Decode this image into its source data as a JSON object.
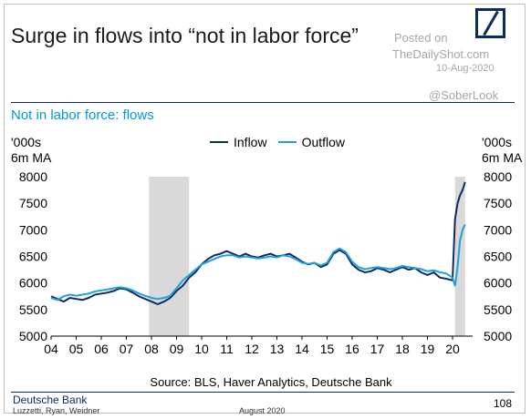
{
  "header": {
    "title": "Surge in flows into “not in labor force”",
    "watermark_line1": "Posted on",
    "watermark_line2": "TheDailyShot.com",
    "watermark_date": "10-Aug-2020",
    "watermark_handle": "@SoberLook"
  },
  "chart_data": {
    "type": "line",
    "title": "Not in labor force: flows",
    "ylabel_left": [
      "'000s",
      "6m MA"
    ],
    "ylabel_right": [
      "'000s",
      "6m MA"
    ],
    "ylim": [
      5000,
      8000
    ],
    "yticks": [
      5000,
      5500,
      6000,
      6500,
      7000,
      7500,
      8000
    ],
    "xlim": [
      2004,
      2020.8
    ],
    "xticks": [
      2004,
      2005,
      2006,
      2007,
      2008,
      2009,
      2010,
      2011,
      2012,
      2013,
      2014,
      2015,
      2016,
      2017,
      2018,
      2019,
      2020
    ],
    "xtick_labels": [
      "04",
      "05",
      "06",
      "07",
      "08",
      "09",
      "10",
      "11",
      "12",
      "13",
      "14",
      "15",
      "16",
      "17",
      "18",
      "19",
      "20"
    ],
    "recessions": [
      [
        2007.9,
        2009.5
      ],
      [
        2020.1,
        2020.5
      ]
    ],
    "grid": false,
    "legend_position": "top-center",
    "series": [
      {
        "name": "Inflow",
        "color": "#0b2b66",
        "x": [
          2004.0,
          2004.25,
          2004.5,
          2004.75,
          2005.0,
          2005.25,
          2005.5,
          2005.75,
          2006.0,
          2006.25,
          2006.5,
          2006.75,
          2007.0,
          2007.25,
          2007.5,
          2007.75,
          2008.0,
          2008.25,
          2008.5,
          2008.75,
          2009.0,
          2009.25,
          2009.5,
          2009.75,
          2010.0,
          2010.25,
          2010.5,
          2010.75,
          2011.0,
          2011.25,
          2011.5,
          2011.75,
          2012.0,
          2012.25,
          2012.5,
          2012.75,
          2013.0,
          2013.25,
          2013.5,
          2013.75,
          2014.0,
          2014.25,
          2014.5,
          2014.75,
          2015.0,
          2015.25,
          2015.5,
          2015.75,
          2016.0,
          2016.25,
          2016.5,
          2016.75,
          2017.0,
          2017.25,
          2017.5,
          2017.75,
          2018.0,
          2018.25,
          2018.5,
          2018.75,
          2019.0,
          2019.25,
          2019.5,
          2019.75,
          2020.0,
          2020.1,
          2020.2,
          2020.3,
          2020.4,
          2020.5
        ],
        "values": [
          5750,
          5700,
          5650,
          5720,
          5700,
          5680,
          5720,
          5780,
          5800,
          5820,
          5850,
          5900,
          5880,
          5820,
          5750,
          5700,
          5650,
          5600,
          5650,
          5720,
          5850,
          5950,
          6100,
          6200,
          6350,
          6450,
          6520,
          6550,
          6600,
          6550,
          6500,
          6550,
          6500,
          6480,
          6520,
          6550,
          6500,
          6520,
          6550,
          6480,
          6400,
          6350,
          6380,
          6300,
          6350,
          6550,
          6620,
          6550,
          6350,
          6250,
          6200,
          6220,
          6280,
          6250,
          6200,
          6250,
          6300,
          6250,
          6280,
          6200,
          6150,
          6200,
          6100,
          6080,
          6050,
          7200,
          7500,
          7650,
          7750,
          7900
        ]
      },
      {
        "name": "Outflow",
        "color": "#1ea0df",
        "x": [
          2004.0,
          2004.25,
          2004.5,
          2004.75,
          2005.0,
          2005.25,
          2005.5,
          2005.75,
          2006.0,
          2006.25,
          2006.5,
          2006.75,
          2007.0,
          2007.25,
          2007.5,
          2007.75,
          2008.0,
          2008.25,
          2008.5,
          2008.75,
          2009.0,
          2009.25,
          2009.5,
          2009.75,
          2010.0,
          2010.25,
          2010.5,
          2010.75,
          2011.0,
          2011.25,
          2011.5,
          2011.75,
          2012.0,
          2012.25,
          2012.5,
          2012.75,
          2013.0,
          2013.25,
          2013.5,
          2013.75,
          2014.0,
          2014.25,
          2014.5,
          2014.75,
          2015.0,
          2015.25,
          2015.5,
          2015.75,
          2016.0,
          2016.25,
          2016.5,
          2016.75,
          2017.0,
          2017.25,
          2017.5,
          2017.75,
          2018.0,
          2018.25,
          2018.5,
          2018.75,
          2019.0,
          2019.25,
          2019.5,
          2019.75,
          2020.0,
          2020.1,
          2020.2,
          2020.3,
          2020.4,
          2020.5
        ],
        "values": [
          5720,
          5680,
          5750,
          5780,
          5760,
          5780,
          5800,
          5840,
          5860,
          5880,
          5900,
          5920,
          5900,
          5860,
          5800,
          5760,
          5720,
          5700,
          5720,
          5760,
          5900,
          6050,
          6150,
          6250,
          6350,
          6400,
          6450,
          6500,
          6520,
          6520,
          6480,
          6500,
          6480,
          6460,
          6480,
          6500,
          6480,
          6520,
          6500,
          6450,
          6380,
          6360,
          6380,
          6330,
          6380,
          6580,
          6650,
          6580,
          6400,
          6300,
          6260,
          6280,
          6300,
          6280,
          6260,
          6280,
          6320,
          6300,
          6280,
          6260,
          6220,
          6240,
          6200,
          6180,
          6100,
          5950,
          6300,
          6800,
          7000,
          7100
        ]
      }
    ]
  },
  "footer": {
    "source": "Source: BLS, Haver Analytics, Deutsche Bank",
    "brand": "Deutsche Bank",
    "authors": "Luzzetti, Ryan, Weidner",
    "date": "August 2020",
    "page_number": "108"
  }
}
